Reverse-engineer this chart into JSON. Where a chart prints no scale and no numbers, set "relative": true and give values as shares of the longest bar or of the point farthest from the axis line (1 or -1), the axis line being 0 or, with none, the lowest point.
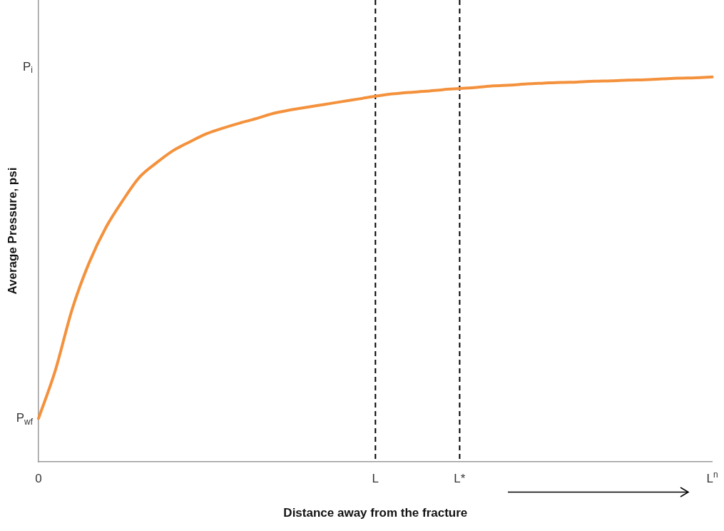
{
  "chart_data": {
    "type": "line",
    "relative": true,
    "xlabel": "Distance away from the fracture",
    "ylabel": "Average Pressure, psi",
    "categories": [
      "0",
      null,
      null,
      null,
      null,
      null,
      null,
      null,
      null,
      null,
      null,
      null,
      null,
      null,
      null,
      null,
      null,
      null,
      null,
      null,
      "L",
      null,
      null,
      null,
      null,
      "L*",
      null,
      null,
      null,
      null,
      null,
      null,
      null,
      null,
      null,
      null,
      null,
      null,
      null,
      null,
      "L$^{n}$"
    ],
    "series": [
      {
        "color": "#f4913c",
        "values": [
          0.113,
          0.238,
          0.397,
          0.517,
          0.609,
          0.679,
          0.74,
          0.777,
          0.809,
          0.832,
          0.853,
          0.868,
          0.881,
          0.893,
          0.906,
          0.915,
          0.922,
          0.929,
          0.936,
          0.943,
          0.95,
          0.956,
          0.96,
          0.963,
          0.967,
          0.97,
          0.973,
          0.977,
          0.979,
          0.982,
          0.984,
          0.986,
          0.987,
          0.989,
          0.99,
          0.992,
          0.993,
          0.995,
          0.997,
          0.998,
          1
        ]
      }
    ],
    "ref_lines": [
      {
        "axis": "x",
        "value": "L",
        "color": "#000000",
        "line_style": "dashed"
      },
      {
        "axis": "x",
        "value": "L*",
        "color": "#000000",
        "line_style": "dashed"
      }
    ],
    "annotations": [
      "P$_{i}$",
      "P$_{wf}$"
    ],
    "grid": false,
    "legend": false,
    "marker": "none",
    "line_style": "solid"
  }
}
